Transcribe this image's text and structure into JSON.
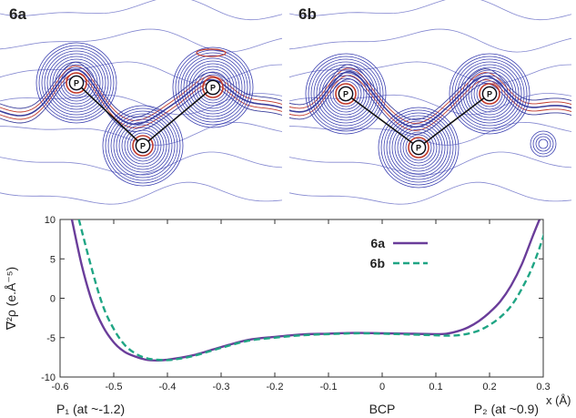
{
  "panels": [
    {
      "label": "6a",
      "atoms": [
        "P",
        "P",
        "P"
      ]
    },
    {
      "label": "6b",
      "atoms": [
        "P",
        "P",
        "P"
      ]
    }
  ],
  "chart_data": {
    "type": "line",
    "ylabel": "∇²ρ (e.Å⁻⁵)",
    "xlabel": "x (Å)",
    "xlim": [
      -0.6,
      0.3
    ],
    "ylim": [
      -10,
      10
    ],
    "xticks": [
      "-0.6",
      "-0.5",
      "-0.4",
      "-0.3",
      "-0.2",
      "-0.1",
      "0",
      "0.1",
      "0.2",
      "0.3"
    ],
    "yticks": [
      "-10",
      "-5",
      "0",
      "5",
      "10"
    ],
    "annotations": {
      "left": "P₁ (at ~-1.2)",
      "center": "BCP",
      "right": "P₂ (at ~0.9)"
    },
    "legend_position": "top-right",
    "series": [
      {
        "name": "6a",
        "color": "#6a3d9a",
        "style": "solid",
        "x": [
          -0.578,
          -0.56,
          -0.54,
          -0.52,
          -0.5,
          -0.48,
          -0.46,
          -0.44,
          -0.42,
          -0.4,
          -0.38,
          -0.35,
          -0.3,
          -0.25,
          -0.2,
          -0.15,
          -0.1,
          -0.05,
          0.0,
          0.05,
          0.1,
          0.12,
          0.14,
          0.16,
          0.18,
          0.2,
          0.22,
          0.24,
          0.26,
          0.28,
          0.293
        ],
        "values": [
          10,
          4.3,
          -0.5,
          -3.6,
          -5.6,
          -6.8,
          -7.4,
          -7.8,
          -7.9,
          -7.8,
          -7.6,
          -7.2,
          -6.2,
          -5.3,
          -4.9,
          -4.6,
          -4.5,
          -4.4,
          -4.45,
          -4.5,
          -4.55,
          -4.5,
          -4.2,
          -3.7,
          -2.9,
          -1.8,
          -0.4,
          1.6,
          4.3,
          7.8,
          10
        ]
      },
      {
        "name": "6b",
        "color": "#1fa584",
        "style": "dashed",
        "x": [
          -0.565,
          -0.54,
          -0.52,
          -0.5,
          -0.48,
          -0.46,
          -0.44,
          -0.42,
          -0.4,
          -0.38,
          -0.35,
          -0.3,
          -0.25,
          -0.2,
          -0.15,
          -0.1,
          -0.05,
          0.0,
          0.05,
          0.1,
          0.12,
          0.14,
          0.16,
          0.18,
          0.2,
          0.22,
          0.24,
          0.26,
          0.28,
          0.3,
          0.308
        ],
        "values": [
          10,
          3.5,
          -1.0,
          -3.9,
          -5.9,
          -7.0,
          -7.6,
          -7.8,
          -7.85,
          -7.7,
          -7.3,
          -6.3,
          -5.4,
          -5.0,
          -4.7,
          -4.55,
          -4.45,
          -4.5,
          -4.6,
          -4.7,
          -4.75,
          -4.7,
          -4.5,
          -4.1,
          -3.4,
          -2.4,
          -1.0,
          1.2,
          4.0,
          7.8,
          10
        ]
      }
    ]
  }
}
